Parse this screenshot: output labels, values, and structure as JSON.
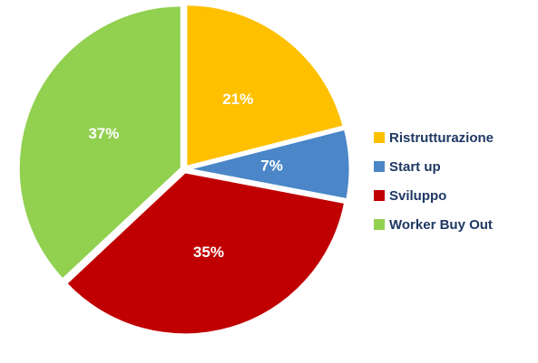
{
  "chart_data": {
    "type": "pie",
    "categories": [
      "Ristrutturazione",
      "Start up",
      "Sviluppo",
      "Worker Buy Out"
    ],
    "values": [
      21,
      7,
      35,
      37
    ],
    "value_labels": [
      "21%",
      "7%",
      "35%",
      "37%"
    ],
    "colors": [
      "#ffc000",
      "#4a86c8",
      "#c00000",
      "#92d050"
    ],
    "legend": "right"
  }
}
